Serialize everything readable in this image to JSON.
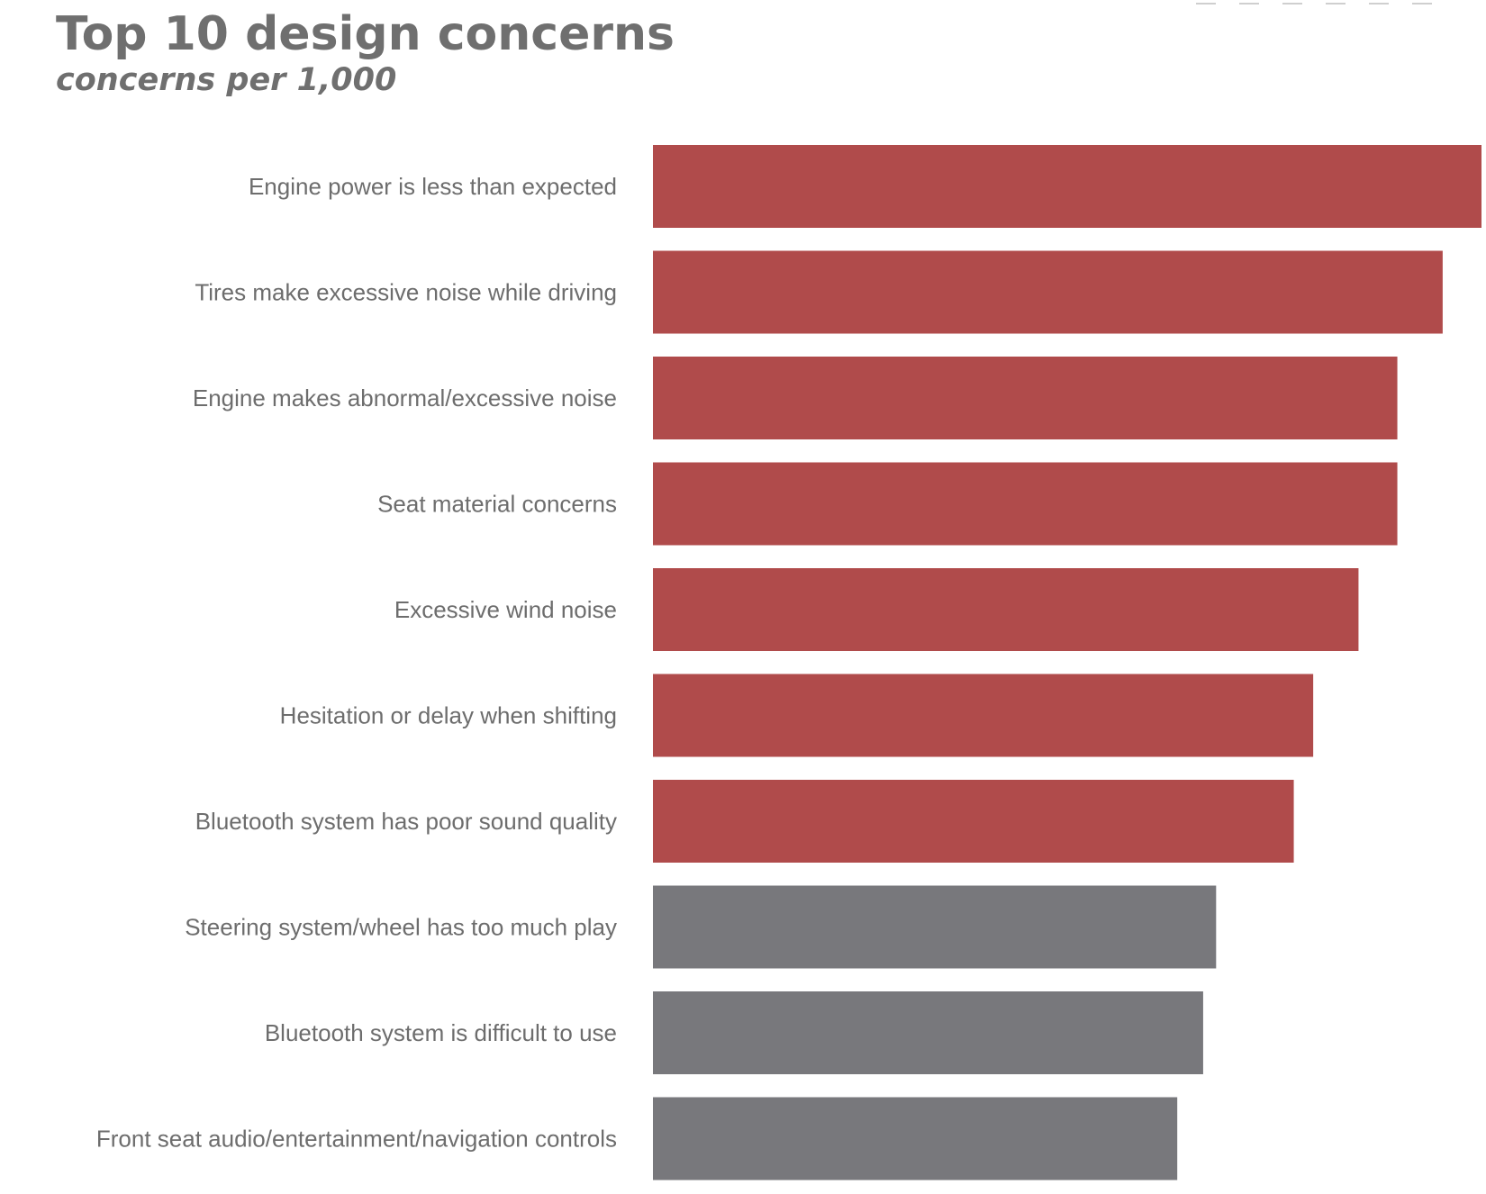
{
  "title": "Top 10 design concerns",
  "subtitle": "concerns per 1,000",
  "colors": {
    "highlight": "#b04b4b",
    "neutral": "#78787c",
    "text": "#6d6d6d"
  },
  "chart_data": {
    "type": "bar",
    "orientation": "horizontal",
    "title": "Top 10 design concerns",
    "subtitle": "concerns per 1,000",
    "categories": [
      "Engine power is less than expected",
      "Tires make excessive noise while driving",
      "Engine makes abnormal/excessive noise",
      "Seat material concerns",
      "Excessive wind noise",
      "Hesitation or delay when shifting",
      "Bluetooth system has poor sound quality",
      "Steering system/wheel has too much play",
      "Bluetooth system is difficult to use",
      "Front seat audio/entertainment/navigation controls"
    ],
    "values": [
      6.4,
      6.1,
      5.75,
      5.75,
      5.45,
      5.1,
      4.95,
      4.35,
      4.25,
      4.05
    ],
    "highlighted": [
      true,
      true,
      true,
      true,
      true,
      true,
      true,
      false,
      false,
      false
    ],
    "xlim": [
      0,
      6.4
    ],
    "grid": false,
    "legend": "none"
  }
}
